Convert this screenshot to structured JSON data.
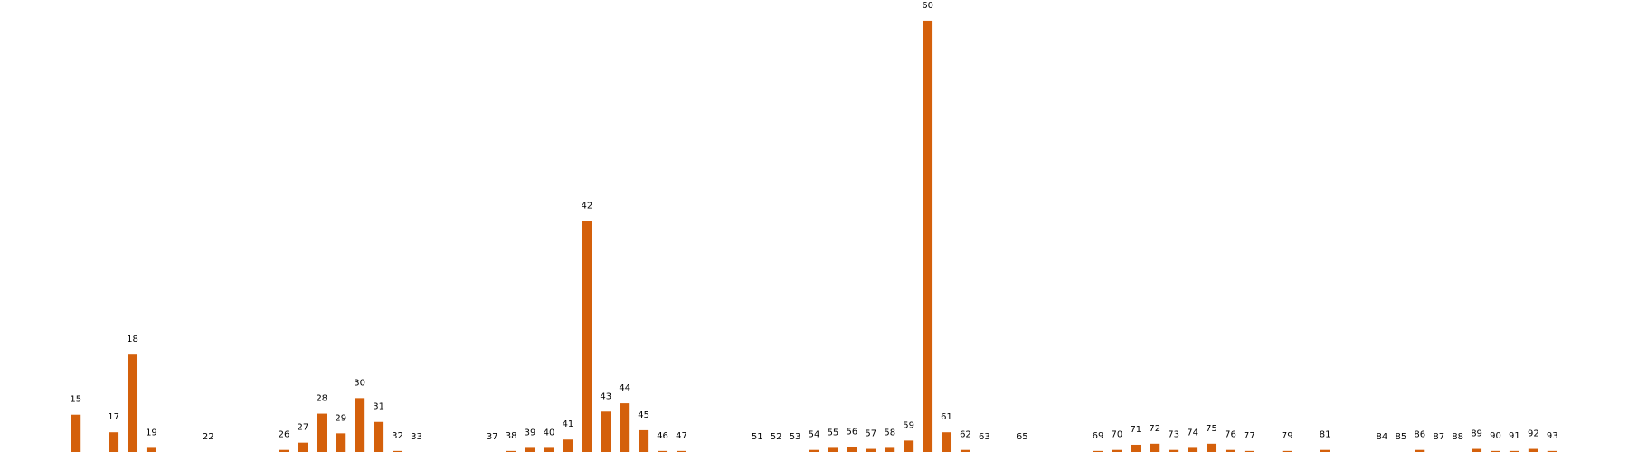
{
  "chart_data": {
    "type": "bar",
    "color": "#d4600b",
    "x": [
      15,
      17,
      18,
      19,
      22,
      26,
      27,
      28,
      29,
      30,
      31,
      32,
      33,
      37,
      38,
      39,
      40,
      41,
      42,
      43,
      44,
      45,
      46,
      47,
      51,
      52,
      53,
      54,
      55,
      56,
      57,
      58,
      59,
      60,
      61,
      62,
      63,
      65,
      69,
      70,
      71,
      72,
      73,
      74,
      75,
      76,
      77,
      79,
      81,
      84,
      85,
      86,
      87,
      88,
      89,
      90,
      91,
      92,
      93
    ],
    "x_labels": [
      "15",
      "17",
      "18",
      "19",
      "22",
      "26",
      "27",
      "28",
      "29",
      "30",
      "31",
      "32",
      "33",
      "37",
      "38",
      "39",
      "40",
      "41",
      "42",
      "43",
      "44",
      "45",
      "46",
      "47",
      "51",
      "52",
      "53",
      "54",
      "55",
      "56",
      "57",
      "58",
      "59",
      "60",
      "61",
      "62",
      "63",
      "65",
      "69",
      "70",
      "71",
      "72",
      "73",
      "74",
      "75",
      "76",
      "77",
      "79",
      "81",
      "84",
      "85",
      "86",
      "87",
      "88",
      "89",
      "90",
      "91",
      "92",
      "93"
    ],
    "values": [
      36,
      19,
      94,
      4,
      0,
      2,
      9,
      37,
      18,
      52,
      29,
      1,
      0,
      0,
      1,
      4,
      4,
      12,
      223,
      39,
      47,
      21,
      1,
      1,
      0,
      0,
      0,
      2,
      4,
      5,
      3,
      4,
      11,
      416,
      19,
      2,
      0,
      0,
      1,
      2,
      7,
      8,
      2,
      4,
      8,
      2,
      1,
      1,
      2,
      0,
      0,
      2,
      0,
      0,
      3,
      1,
      1,
      3,
      1
    ],
    "xlim": [
      11,
      97
    ],
    "ylim": [
      0,
      436
    ]
  }
}
